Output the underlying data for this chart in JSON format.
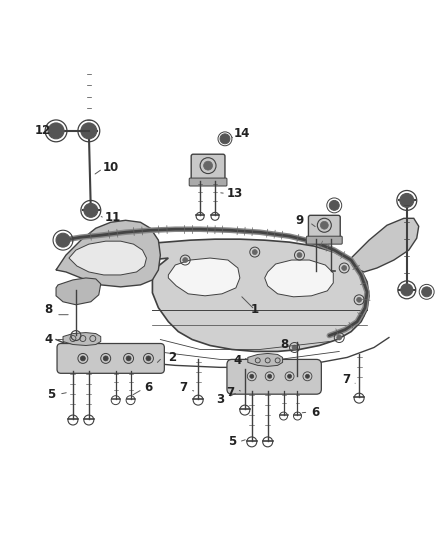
{
  "bg_color": "#ffffff",
  "line_color": "#404040",
  "label_color": "#222222",
  "fig_width": 4.38,
  "fig_height": 5.33
}
